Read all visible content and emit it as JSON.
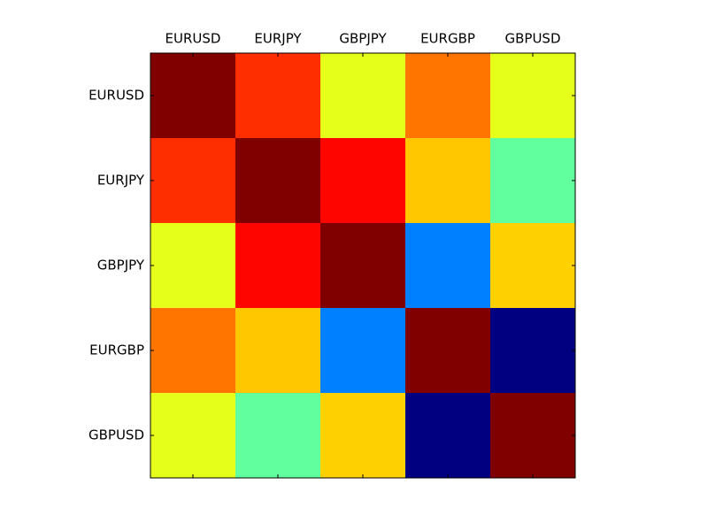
{
  "chart_data": {
    "type": "heatmap",
    "colormap": "jet",
    "x_categories": [
      "EURUSD",
      "EURJPY",
      "GBPJPY",
      "EURGBP",
      "GBPUSD"
    ],
    "y_categories": [
      "EURUSD",
      "EURJPY",
      "GBPJPY",
      "EURGBP",
      "GBPUSD"
    ],
    "values": [
      [
        1.0,
        0.83,
        0.6,
        0.76,
        0.6
      ],
      [
        0.83,
        1.0,
        0.87,
        0.68,
        0.47
      ],
      [
        0.6,
        0.87,
        1.0,
        0.25,
        0.67
      ],
      [
        0.76,
        0.68,
        0.25,
        1.0,
        0.0
      ],
      [
        0.6,
        0.47,
        0.67,
        0.0,
        1.0
      ]
    ]
  }
}
